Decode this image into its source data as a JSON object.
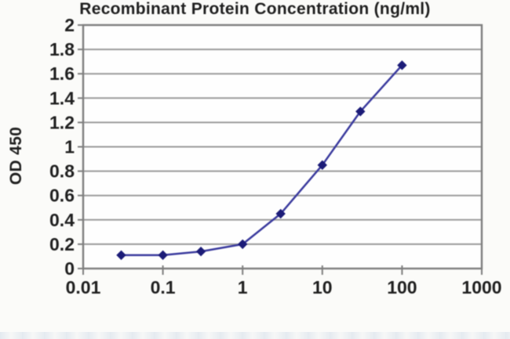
{
  "chart_data": {
    "type": "line",
    "title": "",
    "xlabel": "Recombinant Protein Concentration (ng/ml)",
    "ylabel": "OD 450",
    "x_scale": "log",
    "xlim": [
      0.01,
      1000
    ],
    "ylim": [
      0,
      2
    ],
    "x_ticks": [
      "0.01",
      "0.1",
      "1",
      "10",
      "100",
      "1000"
    ],
    "y_ticks": [
      "2",
      "1.8",
      "1.6",
      "1.4",
      "1.2",
      "1",
      "0.8",
      "0.6",
      "0.4",
      "0.2",
      "0"
    ],
    "y_tick_values": [
      2,
      1.8,
      1.6,
      1.4,
      1.2,
      1,
      0.8,
      0.6,
      0.4,
      0.2,
      0
    ],
    "x_tick_values": [
      0.01,
      0.1,
      1,
      10,
      100,
      1000
    ],
    "grid": "horizontal-only",
    "legend": "none",
    "series": [
      {
        "name": "OD 450",
        "x": [
          0.03,
          0.1,
          0.3,
          1,
          3,
          10,
          30,
          100
        ],
        "y": [
          0.11,
          0.11,
          0.14,
          0.2,
          0.45,
          0.85,
          1.29,
          1.67
        ],
        "marker": "diamond"
      }
    ]
  },
  "colors": {
    "line": "#3b3b9e",
    "marker": "#1c1c78",
    "grid": "#9b9b9b",
    "border": "#7e7e7e",
    "text": "#1f1f1f",
    "plot_bg": "#fefefe",
    "page_bg": "#fbfbf9"
  }
}
